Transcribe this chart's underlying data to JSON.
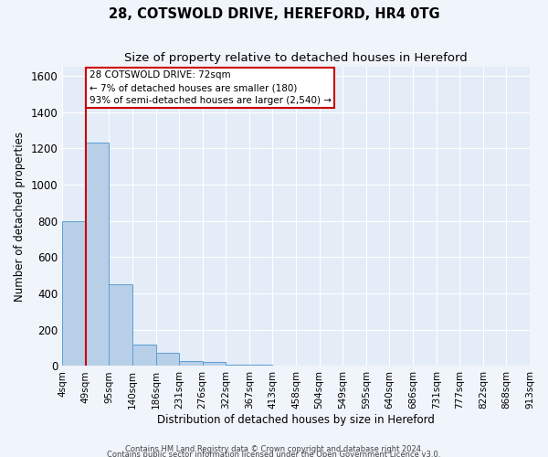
{
  "title": "28, COTSWOLD DRIVE, HEREFORD, HR4 0TG",
  "subtitle": "Size of property relative to detached houses in Hereford",
  "xlabel": "Distribution of detached houses by size in Hereford",
  "ylabel": "Number of detached properties",
  "bar_values": [
    800,
    1230,
    450,
    120,
    75,
    30,
    20,
    8,
    5,
    0,
    0,
    0,
    0,
    0,
    0,
    0,
    0,
    0,
    0,
    0
  ],
  "bar_color": "#b8cfe8",
  "bar_edge_color": "#5a9fd4",
  "x_labels": [
    "4sqm",
    "49sqm",
    "95sqm",
    "140sqm",
    "186sqm",
    "231sqm",
    "276sqm",
    "322sqm",
    "367sqm",
    "413sqm",
    "458sqm",
    "504sqm",
    "549sqm",
    "595sqm",
    "640sqm",
    "686sqm",
    "731sqm",
    "777sqm",
    "822sqm",
    "868sqm",
    "913sqm"
  ],
  "ylim": [
    0,
    1650
  ],
  "yticks": [
    0,
    200,
    400,
    600,
    800,
    1000,
    1200,
    1400,
    1600
  ],
  "vline_x": 1,
  "vline_color": "#cc0000",
  "annotation_title": "28 COTSWOLD DRIVE: 72sqm",
  "annotation_line1": "← 7% of detached houses are smaller (180)",
  "annotation_line2": "93% of semi-detached houses are larger (2,540) →",
  "annotation_box_facecolor": "#ffffff",
  "annotation_box_edgecolor": "#cc0000",
  "fig_facecolor": "#f0f4fb",
  "ax_facecolor": "#e4ecf7",
  "grid_color": "#ffffff",
  "footer_line1": "Contains HM Land Registry data © Crown copyright and database right 2024.",
  "footer_line2": "Contains public sector information licensed under the Open Government Licence v3.0."
}
